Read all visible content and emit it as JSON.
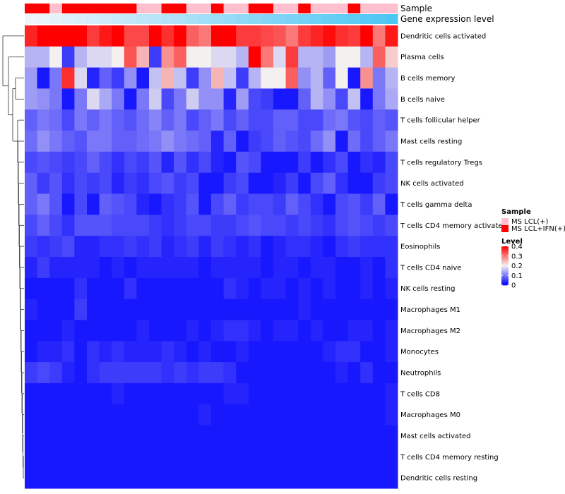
{
  "chart_data": {
    "type": "heatmap",
    "title": "",
    "annotation_rows": [
      {
        "label": "Sample",
        "kind": "categorical"
      },
      {
        "label": "Gene expression level",
        "kind": "gradient",
        "from": "#f1f5fb",
        "to": "#4cc6f3"
      }
    ],
    "sample_groups": [
      "MS LCL+IFN(+)",
      "MS LCL+IFN(+)",
      "MS LCL(+)",
      "MS LCL+IFN(+)",
      "MS LCL+IFN(+)",
      "MS LCL+IFN(+)",
      "MS LCL+IFN(+)",
      "MS LCL+IFN(+)",
      "MS LCL+IFN(+)",
      "MS LCL(+)",
      "MS LCL(+)",
      "MS LCL+IFN(+)",
      "MS LCL+IFN(+)",
      "MS LCL(+)",
      "MS LCL(+)",
      "MS LCL+IFN(+)",
      "MS LCL(+)",
      "MS LCL(+)",
      "MS LCL+IFN(+)",
      "MS LCL+IFN(+)",
      "MS LCL(+)",
      "MS LCL(+)",
      "MS LCL+IFN(+)",
      "MS LCL(+)",
      "MS LCL(+)",
      "MS LCL(+)",
      "MS LCL+IFN(+)",
      "MS LCL(+)",
      "MS LCL(+)",
      "MS LCL(+)"
    ],
    "rows": [
      "Dendritic cells activated",
      "Plasma cells",
      "B cells memory",
      "B cells naive",
      "T cells follicular helper",
      "Mast cells resting",
      "T cells regulatory  Tregs",
      "NK cells activated",
      "T cells gamma delta",
      "T cells CD4 memory activated",
      "Eosinophils",
      "T cells CD4 naive",
      "NK cells resting",
      "Macrophages M1",
      "Macrophages M2",
      "Monocytes",
      "Neutrophils",
      "T cells CD8",
      "Macrophages M0",
      "Mast cells activated",
      "T cells CD4 memory resting",
      "Dendritic cells resting"
    ],
    "values": [
      [
        0.37,
        0.4,
        0.4,
        0.4,
        0.4,
        0.35,
        0.38,
        0.4,
        0.34,
        0.34,
        0.4,
        0.36,
        0.4,
        0.32,
        0.3,
        0.4,
        0.4,
        0.35,
        0.35,
        0.34,
        0.33,
        0.3,
        0.35,
        0.37,
        0.39,
        0.36,
        0.35,
        0.4,
        0.3,
        0.38
      ],
      [
        0.15,
        0.15,
        0.2,
        0.05,
        0.15,
        0.18,
        0.18,
        0.2,
        0.33,
        0.25,
        0.05,
        0.28,
        0.32,
        0.2,
        0.2,
        0.18,
        0.18,
        0.15,
        0.4,
        0.3,
        0.18,
        0.35,
        0.15,
        0.15,
        0.13,
        0.2,
        0.2,
        0.15,
        0.32,
        0.23
      ],
      [
        0.13,
        0.02,
        0.1,
        0.36,
        0.18,
        0.03,
        0.08,
        0.05,
        0.12,
        0.02,
        0.16,
        0.25,
        0.16,
        0.05,
        0.12,
        0.25,
        0.16,
        0.05,
        0.15,
        0.2,
        0.2,
        0.32,
        0.12,
        0.15,
        0.08,
        0.2,
        0.02,
        0.28,
        0.1,
        0.15
      ],
      [
        0.13,
        0.12,
        0.1,
        0.02,
        0.1,
        0.18,
        0.14,
        0.1,
        0.02,
        0.1,
        0.17,
        0.06,
        0.1,
        0.17,
        0.12,
        0.12,
        0.03,
        0.13,
        0.06,
        0.05,
        0.02,
        0.02,
        0.08,
        0.15,
        0.12,
        0.06,
        0.16,
        0.02,
        0.1,
        0.14
      ],
      [
        0.08,
        0.1,
        0.09,
        0.06,
        0.1,
        0.08,
        0.1,
        0.08,
        0.07,
        0.09,
        0.11,
        0.08,
        0.1,
        0.06,
        0.08,
        0.1,
        0.06,
        0.08,
        0.06,
        0.06,
        0.08,
        0.08,
        0.06,
        0.06,
        0.09,
        0.1,
        0.07,
        0.06,
        0.08,
        0.07
      ],
      [
        0.09,
        0.12,
        0.1,
        0.08,
        0.07,
        0.1,
        0.1,
        0.08,
        0.08,
        0.09,
        0.1,
        0.12,
        0.1,
        0.09,
        0.08,
        0.03,
        0.08,
        0.02,
        0.05,
        0.06,
        0.08,
        0.07,
        0.06,
        0.09,
        0.12,
        0.02,
        0.09,
        0.06,
        0.08,
        0.1
      ],
      [
        0.06,
        0.07,
        0.06,
        0.05,
        0.06,
        0.08,
        0.06,
        0.04,
        0.06,
        0.05,
        0.07,
        0.03,
        0.07,
        0.04,
        0.06,
        0.03,
        0.02,
        0.07,
        0.06,
        0.02,
        0.02,
        0.02,
        0.05,
        0.02,
        0.04,
        0.06,
        0.02,
        0.04,
        0.03,
        0.06
      ],
      [
        0.08,
        0.05,
        0.07,
        0.04,
        0.06,
        0.05,
        0.06,
        0.03,
        0.05,
        0.04,
        0.06,
        0.07,
        0.05,
        0.06,
        0.02,
        0.02,
        0.05,
        0.06,
        0.02,
        0.02,
        0.03,
        0.05,
        0.02,
        0.06,
        0.08,
        0.04,
        0.02,
        0.02,
        0.05,
        0.06
      ],
      [
        0.08,
        0.1,
        0.07,
        0.02,
        0.06,
        0.02,
        0.08,
        0.07,
        0.06,
        0.03,
        0.02,
        0.04,
        0.05,
        0.07,
        0.02,
        0.06,
        0.08,
        0.05,
        0.06,
        0.06,
        0.05,
        0.08,
        0.06,
        0.04,
        0.02,
        0.06,
        0.07,
        0.05,
        0.08,
        0.02
      ],
      [
        0.06,
        0.08,
        0.06,
        0.04,
        0.07,
        0.07,
        0.07,
        0.06,
        0.06,
        0.06,
        0.05,
        0.04,
        0.05,
        0.06,
        0.06,
        0.05,
        0.05,
        0.06,
        0.07,
        0.06,
        0.06,
        0.05,
        0.06,
        0.05,
        0.04,
        0.06,
        0.07,
        0.06,
        0.05,
        0.06
      ],
      [
        0.05,
        0.04,
        0.05,
        0.06,
        0.03,
        0.03,
        0.04,
        0.04,
        0.05,
        0.04,
        0.05,
        0.03,
        0.04,
        0.05,
        0.03,
        0.05,
        0.04,
        0.03,
        0.04,
        0.02,
        0.03,
        0.04,
        0.04,
        0.03,
        0.02,
        0.04,
        0.05,
        0.04,
        0.04,
        0.04
      ],
      [
        0.03,
        0.05,
        0.03,
        0.03,
        0.03,
        0.03,
        0.02,
        0.03,
        0.02,
        0.03,
        0.03,
        0.03,
        0.03,
        0.03,
        0.02,
        0.03,
        0.03,
        0.03,
        0.03,
        0.02,
        0.03,
        0.03,
        0.02,
        0.03,
        0.03,
        0.02,
        0.02,
        0.03,
        0.02,
        0.04
      ],
      [
        0.02,
        0.02,
        0.02,
        0.02,
        0.04,
        0.02,
        0.02,
        0.02,
        0.04,
        0.02,
        0.02,
        0.02,
        0.02,
        0.02,
        0.02,
        0.02,
        0.04,
        0.03,
        0.02,
        0.03,
        0.03,
        0.02,
        0.03,
        0.02,
        0.03,
        0.02,
        0.02,
        0.03,
        0.02,
        0.03
      ],
      [
        0.03,
        0.02,
        0.02,
        0.02,
        0.05,
        0.02,
        0.02,
        0.02,
        0.02,
        0.02,
        0.02,
        0.02,
        0.02,
        0.02,
        0.02,
        0.02,
        0.02,
        0.02,
        0.02,
        0.02,
        0.02,
        0.02,
        0.03,
        0.02,
        0.02,
        0.02,
        0.02,
        0.02,
        0.02,
        0.02
      ],
      [
        0.02,
        0.02,
        0.02,
        0.03,
        0.02,
        0.02,
        0.02,
        0.02,
        0.02,
        0.03,
        0.02,
        0.02,
        0.02,
        0.03,
        0.02,
        0.03,
        0.04,
        0.04,
        0.03,
        0.02,
        0.03,
        0.03,
        0.02,
        0.03,
        0.02,
        0.02,
        0.03,
        0.03,
        0.02,
        0.03
      ],
      [
        0.02,
        0.03,
        0.03,
        0.04,
        0.02,
        0.04,
        0.03,
        0.04,
        0.03,
        0.03,
        0.03,
        0.04,
        0.03,
        0.02,
        0.03,
        0.02,
        0.02,
        0.03,
        0.02,
        0.02,
        0.02,
        0.02,
        0.02,
        0.02,
        0.03,
        0.04,
        0.04,
        0.02,
        0.02,
        0.03
      ],
      [
        0.05,
        0.06,
        0.05,
        0.03,
        0.02,
        0.04,
        0.05,
        0.05,
        0.05,
        0.05,
        0.05,
        0.04,
        0.05,
        0.04,
        0.05,
        0.05,
        0.04,
        0.02,
        0.02,
        0.02,
        0.02,
        0.02,
        0.02,
        0.02,
        0.02,
        0.03,
        0.02,
        0.04,
        0.02,
        0.02
      ],
      [
        0.02,
        0.02,
        0.02,
        0.02,
        0.02,
        0.02,
        0.02,
        0.03,
        0.02,
        0.02,
        0.02,
        0.02,
        0.02,
        0.02,
        0.02,
        0.02,
        0.03,
        0.03,
        0.02,
        0.02,
        0.02,
        0.02,
        0.02,
        0.02,
        0.02,
        0.02,
        0.02,
        0.02,
        0.02,
        0.03
      ],
      [
        0.02,
        0.02,
        0.02,
        0.02,
        0.02,
        0.02,
        0.02,
        0.02,
        0.02,
        0.02,
        0.02,
        0.02,
        0.02,
        0.02,
        0.03,
        0.02,
        0.02,
        0.02,
        0.02,
        0.02,
        0.02,
        0.02,
        0.02,
        0.02,
        0.02,
        0.02,
        0.02,
        0.02,
        0.02,
        0.03
      ],
      [
        0.02,
        0.02,
        0.02,
        0.02,
        0.02,
        0.02,
        0.02,
        0.02,
        0.02,
        0.02,
        0.02,
        0.02,
        0.02,
        0.02,
        0.02,
        0.02,
        0.02,
        0.02,
        0.02,
        0.02,
        0.02,
        0.02,
        0.02,
        0.02,
        0.02,
        0.02,
        0.02,
        0.02,
        0.02,
        0.02
      ],
      [
        0.02,
        0.02,
        0.02,
        0.02,
        0.02,
        0.02,
        0.02,
        0.02,
        0.02,
        0.02,
        0.02,
        0.02,
        0.02,
        0.02,
        0.02,
        0.02,
        0.02,
        0.02,
        0.02,
        0.02,
        0.02,
        0.02,
        0.02,
        0.02,
        0.02,
        0.02,
        0.02,
        0.02,
        0.02,
        0.02
      ],
      [
        0.02,
        0.02,
        0.02,
        0.02,
        0.02,
        0.02,
        0.02,
        0.02,
        0.02,
        0.02,
        0.02,
        0.02,
        0.02,
        0.02,
        0.02,
        0.02,
        0.02,
        0.02,
        0.02,
        0.02,
        0.02,
        0.02,
        0.02,
        0.02,
        0.02,
        0.02,
        0.02,
        0.02,
        0.02,
        0.02
      ]
    ],
    "color_scale": {
      "min": 0,
      "max": 0.4,
      "stops": [
        {
          "value": 0,
          "color": "#0000ff"
        },
        {
          "value": 0.2,
          "color": "#f4f0f0"
        },
        {
          "value": 0.4,
          "color": "#ff0000"
        }
      ]
    },
    "legend_position": "right",
    "legend": {
      "sample": {
        "title": "Sample",
        "entries": [
          {
            "label": "MS LCL(+)",
            "color": "#ffbfce"
          },
          {
            "label": "MS LCL+IFN(+)",
            "color": "#ff0000"
          }
        ]
      },
      "level": {
        "title": "Level",
        "ticks": [
          {
            "value": 0.4,
            "label": "0.4"
          },
          {
            "value": 0.3,
            "label": "0.3"
          },
          {
            "value": 0.2,
            "label": "0.2"
          },
          {
            "value": 0.1,
            "label": "0.1"
          },
          {
            "value": 0,
            "label": "0"
          }
        ]
      }
    },
    "dendrogram": "rows"
  }
}
